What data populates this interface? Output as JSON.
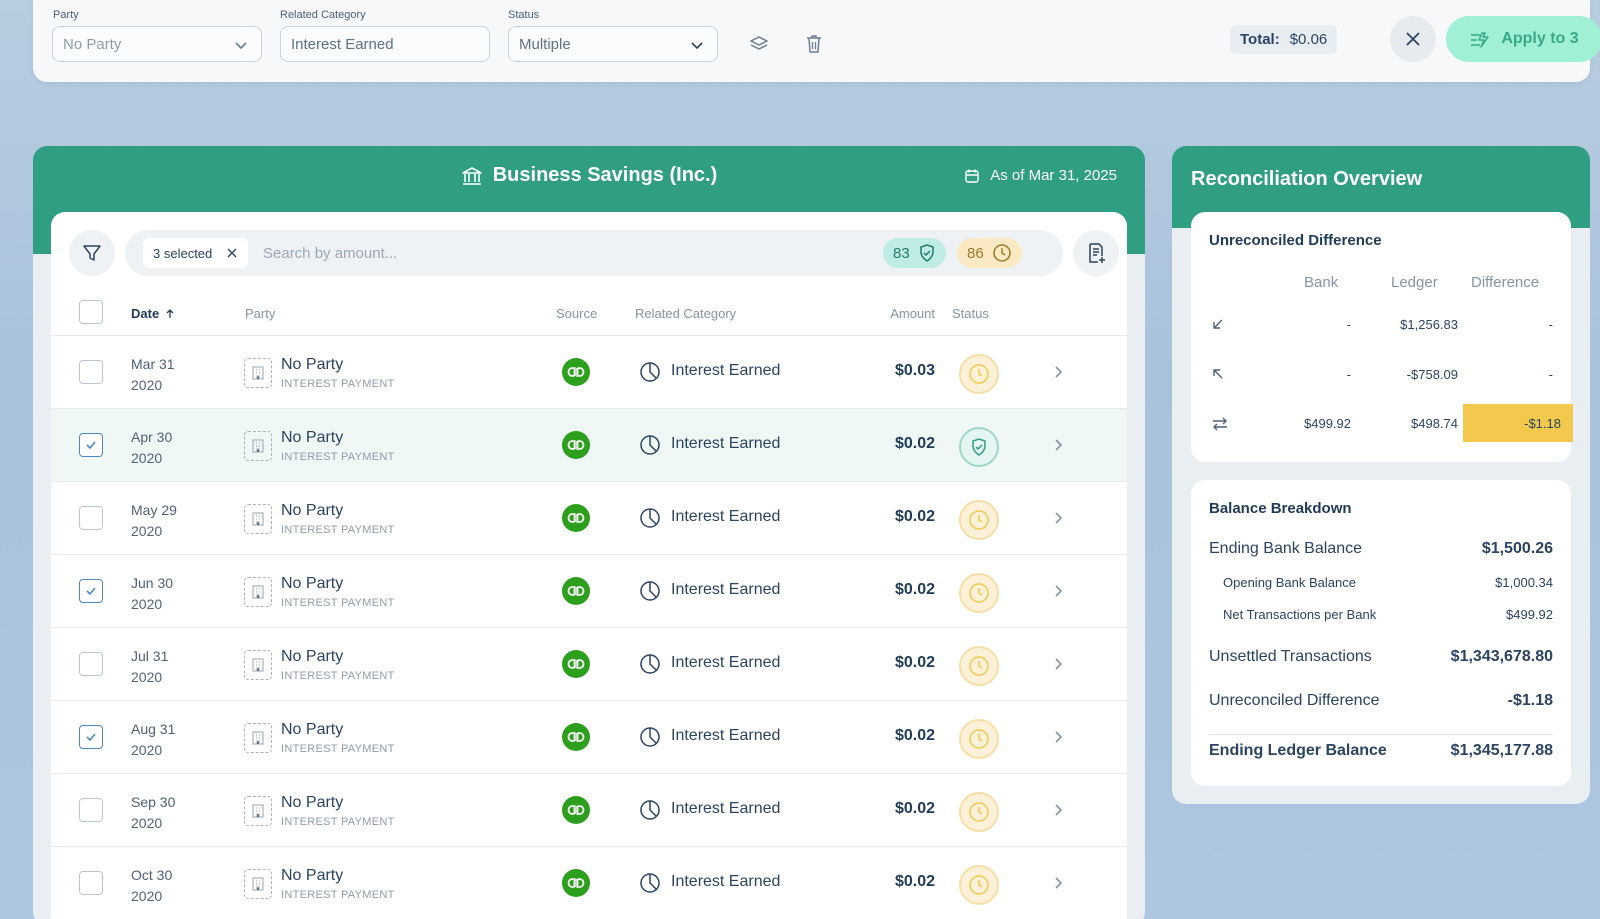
{
  "toolbar": {
    "party_label": "Party",
    "party_placeholder": "No Party",
    "category_label": "Related Category",
    "category_value": "Interest Earned",
    "status_label": "Status",
    "status_value": "Multiple",
    "total_label": "Total:",
    "total_value": "$0.06",
    "apply_label": "Apply to 3"
  },
  "account": {
    "title": "Business Savings (Inc.)",
    "as_of": "As of Mar 31, 2025"
  },
  "search": {
    "selected_label": "3 selected",
    "placeholder": "Search by amount...",
    "count_reconciled": "83",
    "count_pending": "86"
  },
  "table": {
    "headers": {
      "date": "Date",
      "party": "Party",
      "source": "Source",
      "category": "Related Category",
      "amount": "Amount",
      "status": "Status"
    },
    "rows": [
      {
        "month_day": "Mar 31",
        "year": "2020",
        "party": "No Party",
        "party_sub": "INTEREST PAYMENT",
        "category": "Interest Earned",
        "amount": "$0.03",
        "status": "pending",
        "checked": false
      },
      {
        "month_day": "Apr 30",
        "year": "2020",
        "party": "No Party",
        "party_sub": "INTEREST PAYMENT",
        "category": "Interest Earned",
        "amount": "$0.02",
        "status": "reconciled",
        "checked": true
      },
      {
        "month_day": "May 29",
        "year": "2020",
        "party": "No Party",
        "party_sub": "INTEREST PAYMENT",
        "category": "Interest Earned",
        "amount": "$0.02",
        "status": "pending",
        "checked": false
      },
      {
        "month_day": "Jun 30",
        "year": "2020",
        "party": "No Party",
        "party_sub": "INTEREST PAYMENT",
        "category": "Interest Earned",
        "amount": "$0.02",
        "status": "pending",
        "checked": true
      },
      {
        "month_day": "Jul 31",
        "year": "2020",
        "party": "No Party",
        "party_sub": "INTEREST PAYMENT",
        "category": "Interest Earned",
        "amount": "$0.02",
        "status": "pending",
        "checked": false
      },
      {
        "month_day": "Aug 31",
        "year": "2020",
        "party": "No Party",
        "party_sub": "INTEREST PAYMENT",
        "category": "Interest Earned",
        "amount": "$0.02",
        "status": "pending",
        "checked": true
      },
      {
        "month_day": "Sep 30",
        "year": "2020",
        "party": "No Party",
        "party_sub": "INTEREST PAYMENT",
        "category": "Interest Earned",
        "amount": "$0.02",
        "status": "pending",
        "checked": false
      },
      {
        "month_day": "Oct 30",
        "year": "2020",
        "party": "No Party",
        "party_sub": "INTEREST PAYMENT",
        "category": "Interest Earned",
        "amount": "$0.02",
        "status": "pending",
        "checked": false
      }
    ]
  },
  "overview": {
    "title": "Reconciliation Overview",
    "unreconciled": {
      "title": "Unreconciled Difference",
      "col_bank": "Bank",
      "col_ledger": "Ledger",
      "col_difference": "Difference",
      "rows": [
        {
          "icon": "arrow-down-left-icon",
          "bank": "-",
          "ledger": "$1,256.83",
          "difference": "-"
        },
        {
          "icon": "arrow-up-left-icon",
          "bank": "-",
          "ledger": "-$758.09",
          "difference": "-"
        },
        {
          "icon": "swap-arrows-icon",
          "bank": "$499.92",
          "ledger": "$498.74",
          "difference": "-$1.18"
        }
      ]
    },
    "breakdown": {
      "title": "Balance Breakdown",
      "ending_bank_label": "Ending Bank Balance",
      "ending_bank_value": "$1,500.26",
      "opening_bank_label": "Opening Bank Balance",
      "opening_bank_value": "$1,000.34",
      "net_tx_label": "Net Transactions per Bank",
      "net_tx_value": "$499.92",
      "unsettled_label": "Unsettled Transactions",
      "unsettled_value": "$1,343,678.80",
      "unrec_label": "Unreconciled Difference",
      "unrec_value": "-$1.18",
      "ending_ledger_label": "Ending Ledger Balance",
      "ending_ledger_value": "$1,345,177.88"
    }
  },
  "colors": {
    "brand_green": "#2f9e83",
    "highlight_yellow": "#f2c94c",
    "quickbooks_green": "#2ca01c"
  }
}
